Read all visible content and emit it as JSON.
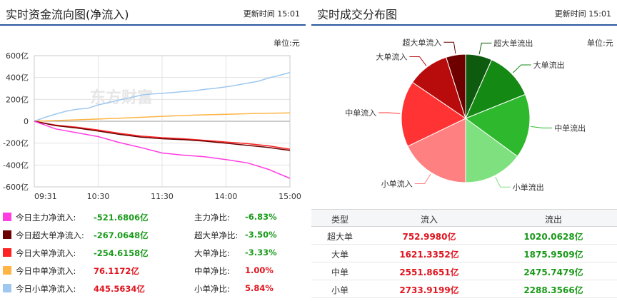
{
  "left_panel": {
    "title": "实时资金流向图(净流入)",
    "update_time": "更新时间 15:01",
    "unit": "单位:元",
    "watermark": "东方财富"
  },
  "right_panel": {
    "title": "实时成交分布图",
    "update_time": "更新时间 15:01",
    "unit": "单位:元"
  },
  "legend": [
    {
      "label": "今日主力净流入:",
      "value": "-521.6806亿",
      "ratio_label": "主力净比:",
      "ratio": "-6.83%",
      "color": "#ff3ce0",
      "sign": "neg"
    },
    {
      "label": "今日超大单净流入:",
      "value": "-267.0648亿",
      "ratio_label": "超大单净比:",
      "ratio": "-3.50%",
      "color": "#6b0000",
      "sign": "neg"
    },
    {
      "label": "今日大单净流入:",
      "value": "-254.6158亿",
      "ratio_label": "大单净比:",
      "ratio": "-3.33%",
      "color": "#ff2222",
      "sign": "neg"
    },
    {
      "label": "今日中单净流入:",
      "value": "76.1172亿",
      "ratio_label": "中单净比:",
      "ratio": "1.00%",
      "color": "#ffb444",
      "sign": "pos"
    },
    {
      "label": "今日小单净流入:",
      "value": "445.5634亿",
      "ratio_label": "小单净比:",
      "ratio": "5.84%",
      "color": "#9ec8ef",
      "sign": "pos"
    }
  ],
  "table": {
    "headers": [
      "类型",
      "流入",
      "流出"
    ],
    "rows": [
      {
        "type": "超大单",
        "inflow": "752.9980亿",
        "outflow": "1020.0628亿"
      },
      {
        "type": "大单",
        "inflow": "1621.3352亿",
        "outflow": "1875.9509亿"
      },
      {
        "type": "中单",
        "inflow": "2551.8651亿",
        "outflow": "2475.7479亿"
      },
      {
        "type": "小单",
        "inflow": "2733.9199亿",
        "outflow": "2288.3566亿"
      }
    ]
  },
  "chart_data": [
    {
      "type": "line",
      "x_ticks": [
        "09:31",
        "10:30",
        "11:30",
        "14:00",
        "15:00"
      ],
      "y_ticks": [
        "600亿",
        "400亿",
        "200亿",
        "0",
        "-200亿",
        "-400亿",
        "-600亿"
      ],
      "ylim": [
        -600,
        600
      ],
      "grid": true,
      "series": [
        {
          "name": "今日小单净流入",
          "color": "#9ec8ef",
          "x": [
            0,
            10,
            20,
            30,
            40,
            50,
            60,
            70,
            80,
            90,
            100,
            110,
            120,
            130,
            140,
            150,
            160,
            170,
            180,
            190,
            200,
            210,
            220,
            230,
            240
          ],
          "values": [
            0,
            35,
            65,
            92,
            110,
            118,
            150,
            170,
            195,
            215,
            238,
            250,
            255,
            262,
            272,
            278,
            292,
            302,
            315,
            330,
            348,
            365,
            395,
            420,
            446
          ]
        },
        {
          "name": "今日中单净流入",
          "color": "#ffb444",
          "x": [
            0,
            30,
            60,
            90,
            120,
            150,
            180,
            210,
            240
          ],
          "values": [
            0,
            10,
            20,
            32,
            45,
            56,
            64,
            72,
            76
          ]
        },
        {
          "name": "今日大单净流入",
          "color": "#ff2222",
          "x": [
            0,
            20,
            40,
            60,
            80,
            100,
            120,
            140,
            160,
            180,
            200,
            220,
            240
          ],
          "values": [
            0,
            -35,
            -55,
            -80,
            -110,
            -135,
            -150,
            -160,
            -175,
            -190,
            -205,
            -225,
            -255
          ]
        },
        {
          "name": "今日超大单净流入",
          "color": "#6b0000",
          "x": [
            0,
            20,
            40,
            60,
            80,
            100,
            120,
            140,
            160,
            180,
            200,
            220,
            240
          ],
          "values": [
            0,
            -40,
            -62,
            -90,
            -120,
            -145,
            -160,
            -168,
            -182,
            -200,
            -220,
            -240,
            -267
          ]
        },
        {
          "name": "今日主力净流入",
          "color": "#ff3ce0",
          "x": [
            0,
            20,
            40,
            60,
            80,
            100,
            120,
            140,
            160,
            180,
            200,
            220,
            240
          ],
          "values": [
            0,
            -70,
            -105,
            -140,
            -195,
            -240,
            -290,
            -310,
            -325,
            -350,
            -380,
            -440,
            -522
          ]
        }
      ]
    },
    {
      "type": "pie",
      "slices": [
        {
          "label": "超大单流出",
          "value": 1020.0628,
          "color": "#0e5a0e"
        },
        {
          "label": "大单流出",
          "value": 1875.9509,
          "color": "#148a14"
        },
        {
          "label": "中单流出",
          "value": 2475.7479,
          "color": "#2eb82e"
        },
        {
          "label": "小单流出",
          "value": 2288.3566,
          "color": "#7ee07e"
        },
        {
          "label": "小单流入",
          "value": 2733.9199,
          "color": "#ff8080"
        },
        {
          "label": "中单流入",
          "value": 2551.8651,
          "color": "#ff3333"
        },
        {
          "label": "大单流入",
          "value": 1621.3352,
          "color": "#b80c0c"
        },
        {
          "label": "超大单流入",
          "value": 752.998,
          "color": "#6e0000"
        }
      ]
    }
  ]
}
